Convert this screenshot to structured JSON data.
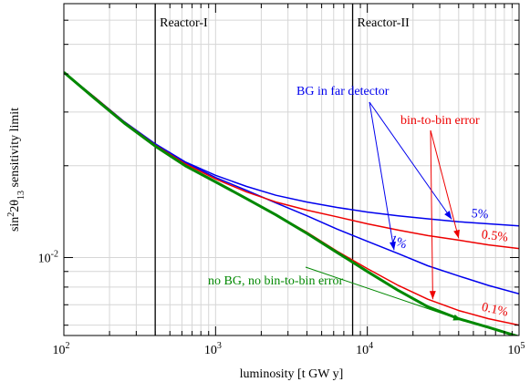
{
  "chart_data": {
    "type": "line",
    "title": "",
    "xlabel": "luminosity [t GW y]",
    "ylabel": {
      "pre": "sin",
      "sup": "2",
      "mid": "2θ",
      "sub": "13",
      "post": " sensitivity limit"
    },
    "xscale": "log",
    "yscale": "log",
    "xlim": [
      100,
      100000
    ],
    "ylim": [
      0.00555,
      0.068
    ],
    "grid": true,
    "x_ticks": [
      {
        "value": 100,
        "base": "10",
        "exp": "2"
      },
      {
        "value": 1000,
        "base": "10",
        "exp": "3"
      },
      {
        "value": 10000,
        "base": "10",
        "exp": "4"
      },
      {
        "value": 100000,
        "base": "10",
        "exp": "5"
      }
    ],
    "y_ticks": [
      {
        "value": 0.01,
        "base": "10",
        "exp": "-2"
      }
    ],
    "reference_lines": [
      {
        "x": 400,
        "label": "Reactor-I"
      },
      {
        "x": 8000,
        "label": "Reactor-II"
      }
    ],
    "series": [
      {
        "group": "BG in far detector",
        "label": "5%",
        "color": "#0000ee",
        "x": [
          100,
          160,
          250,
          400,
          630,
          1000,
          1600,
          2500,
          4000,
          6300,
          10000,
          16000,
          25000,
          40000,
          63000,
          100000
        ],
        "y": [
          0.0405,
          0.0335,
          0.0279,
          0.0236,
          0.0206,
          0.0186,
          0.0171,
          0.016,
          0.0152,
          0.0146,
          0.0141,
          0.0137,
          0.0134,
          0.0131,
          0.0129,
          0.0127
        ]
      },
      {
        "group": "BG in far detector",
        "label": "1%",
        "color": "#0000ee",
        "x": [
          100,
          160,
          250,
          400,
          630,
          1000,
          1600,
          2500,
          4000,
          6300,
          10000,
          16000,
          25000,
          40000,
          63000,
          100000
        ],
        "y": [
          0.0405,
          0.0335,
          0.0278,
          0.0235,
          0.0205,
          0.0183,
          0.0166,
          0.0151,
          0.0137,
          0.0124,
          0.0113,
          0.0103,
          0.0094,
          0.0087,
          0.0081,
          0.0076
        ]
      },
      {
        "group": "bin-to-bin error",
        "label": "0.5%",
        "color": "#ee0000",
        "x": [
          100,
          160,
          250,
          400,
          630,
          1000,
          1600,
          2500,
          4000,
          6300,
          10000,
          16000,
          25000,
          40000,
          63000,
          100000
        ],
        "y": [
          0.0405,
          0.0335,
          0.0278,
          0.0234,
          0.0203,
          0.0181,
          0.0164,
          0.0152,
          0.0143,
          0.0136,
          0.0129,
          0.0123,
          0.0118,
          0.0114,
          0.011,
          0.0107
        ]
      },
      {
        "group": "bin-to-bin error",
        "label": "0.1%",
        "color": "#ee0000",
        "x": [
          100,
          160,
          250,
          400,
          630,
          1000,
          1600,
          2500,
          4000,
          6300,
          10000,
          16000,
          25000,
          40000,
          63000,
          100000
        ],
        "y": [
          0.0405,
          0.0334,
          0.0276,
          0.0232,
          0.02,
          0.0177,
          0.0156,
          0.0138,
          0.0121,
          0.0105,
          0.0092,
          0.0081,
          0.0073,
          0.0067,
          0.0063,
          0.006
        ]
      },
      {
        "group": "no BG, no bin-to-bin error",
        "label": "",
        "color": "#008800",
        "x": [
          100,
          160,
          250,
          400,
          630,
          1000,
          1600,
          2500,
          4000,
          6300,
          10000,
          16000,
          25000,
          40000,
          63000,
          100000
        ],
        "y": [
          0.0405,
          0.0332,
          0.0276,
          0.0232,
          0.02,
          0.0177,
          0.0156,
          0.0138,
          0.012,
          0.0104,
          0.009,
          0.0078,
          0.0069,
          0.0063,
          0.0059,
          0.0055
        ]
      }
    ],
    "annotations": [
      {
        "text": "BG in far detector",
        "color": "#0000ee"
      },
      {
        "text": "bin-to-bin error",
        "color": "#ee0000"
      },
      {
        "text": "no BG, no bin-to-bin error",
        "color": "#008800"
      }
    ]
  }
}
